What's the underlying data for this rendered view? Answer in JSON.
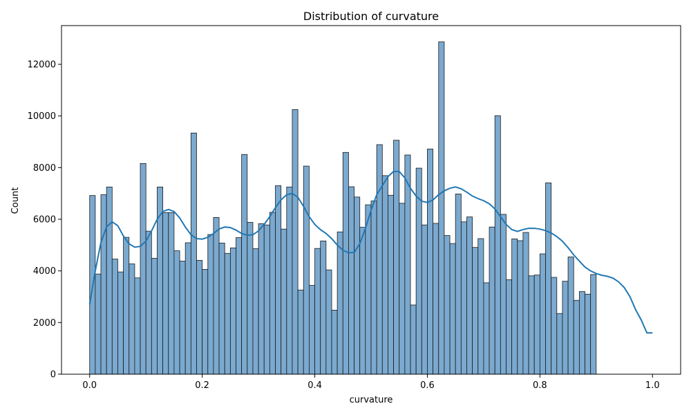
{
  "chart_data": {
    "type": "bar",
    "subtype": "histogram-with-kde",
    "title": "Distribution of curvature",
    "xlabel": "curvature",
    "ylabel": "Count",
    "xlim": [
      -0.05,
      1.05
    ],
    "ylim": [
      0,
      13500
    ],
    "xticks": [
      0.0,
      0.2,
      0.4,
      0.6,
      0.8,
      1.0
    ],
    "xtick_labels": [
      "0.0",
      "0.2",
      "0.4",
      "0.6",
      "0.8",
      "1.0"
    ],
    "yticks": [
      0,
      2000,
      4000,
      6000,
      8000,
      10000,
      12000
    ],
    "ytick_labels": [
      "0",
      "2000",
      "4000",
      "6000",
      "8000",
      "10000",
      "12000"
    ],
    "grid": false,
    "legend": "none",
    "bin_start": 0.0,
    "bin_width": 0.01,
    "counts": [
      6920,
      3880,
      6950,
      7250,
      4460,
      3960,
      5300,
      4270,
      3730,
      8160,
      5540,
      4490,
      7250,
      6260,
      6260,
      4780,
      4380,
      5090,
      9340,
      4410,
      4060,
      5410,
      6070,
      5080,
      4680,
      4890,
      5290,
      8510,
      5880,
      4860,
      5830,
      5780,
      6270,
      7300,
      5620,
      7250,
      10250,
      3260,
      8060,
      3440,
      4870,
      5160,
      4040,
      2480,
      5510,
      8590,
      7260,
      6860,
      5690,
      6560,
      6710,
      8890,
      7690,
      6930,
      9060,
      6620,
      8490,
      2680,
      7980,
      5780,
      8720,
      5840,
      12870,
      5370,
      5060,
      6980,
      5900,
      6090,
      4910,
      5250,
      3540,
      5700,
      10010,
      6190,
      3660,
      5240,
      5170,
      5490,
      3810,
      3840,
      4660,
      7410,
      3750,
      2350,
      3600,
      4540,
      2860,
      3200,
      3100,
      3860
    ],
    "kde": {
      "x": [
        0.0,
        0.01,
        0.02,
        0.03,
        0.04,
        0.05,
        0.06,
        0.07,
        0.08,
        0.09,
        0.1,
        0.11,
        0.12,
        0.13,
        0.14,
        0.15,
        0.16,
        0.17,
        0.18,
        0.19,
        0.2,
        0.21,
        0.22,
        0.23,
        0.24,
        0.25,
        0.26,
        0.27,
        0.28,
        0.29,
        0.3,
        0.31,
        0.32,
        0.33,
        0.34,
        0.35,
        0.36,
        0.37,
        0.38,
        0.39,
        0.4,
        0.41,
        0.42,
        0.43,
        0.44,
        0.45,
        0.46,
        0.47,
        0.48,
        0.49,
        0.5,
        0.51,
        0.52,
        0.53,
        0.54,
        0.55,
        0.56,
        0.57,
        0.58,
        0.59,
        0.6,
        0.61,
        0.62,
        0.63,
        0.64,
        0.65,
        0.66,
        0.67,
        0.68,
        0.69,
        0.7,
        0.71,
        0.72,
        0.73,
        0.74,
        0.75,
        0.76,
        0.77,
        0.78,
        0.79,
        0.8,
        0.81,
        0.82,
        0.83,
        0.84,
        0.85,
        0.86,
        0.87,
        0.88,
        0.89,
        0.9,
        0.91,
        0.92,
        0.93,
        0.94,
        0.95,
        0.96,
        0.97,
        0.98,
        0.99,
        1.0
      ],
      "y": [
        2700,
        4000,
        5100,
        5700,
        5900,
        5750,
        5350,
        5050,
        4920,
        4950,
        5150,
        5550,
        6000,
        6300,
        6380,
        6300,
        6050,
        5700,
        5400,
        5250,
        5230,
        5300,
        5450,
        5620,
        5700,
        5680,
        5580,
        5450,
        5380,
        5400,
        5550,
        5800,
        6100,
        6450,
        6750,
        6950,
        7000,
        6850,
        6500,
        6100,
        5800,
        5600,
        5450,
        5250,
        5000,
        4800,
        4700,
        4720,
        5050,
        5650,
        6350,
        6950,
        7300,
        7650,
        7850,
        7850,
        7600,
        7200,
        6900,
        6700,
        6650,
        6750,
        6950,
        7100,
        7200,
        7250,
        7180,
        7050,
        6900,
        6800,
        6720,
        6600,
        6400,
        6100,
        5800,
        5600,
        5530,
        5600,
        5650,
        5650,
        5620,
        5560,
        5470,
        5330,
        5150,
        4900,
        4620,
        4380,
        4150,
        4000,
        3900,
        3830,
        3790,
        3720,
        3570,
        3350,
        3000,
        2500,
        2100,
        1600,
        1600
      ]
    },
    "colors": {
      "bar_fill": "#7ba9cf",
      "bar_edge": "#1a1a1a",
      "kde_line": "#1f77b4",
      "axes": "#000000"
    }
  }
}
